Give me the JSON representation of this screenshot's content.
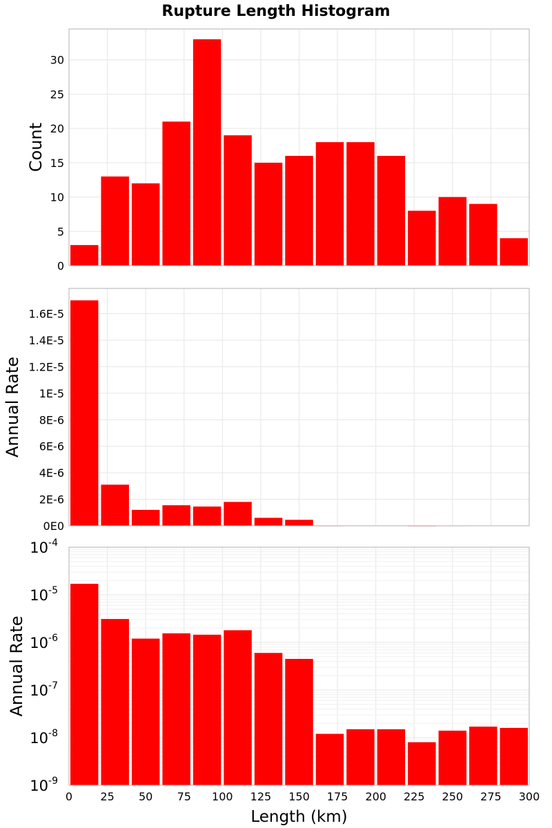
{
  "figure": {
    "title": "Rupture Length Histogram",
    "bar_color": "#ff0000"
  },
  "chart_data": [
    {
      "type": "bar",
      "bin_edges": [
        0,
        20,
        40,
        60,
        80,
        100,
        120,
        140,
        160,
        180,
        200,
        220,
        240,
        260,
        280,
        300
      ],
      "values": [
        3,
        13,
        12,
        21,
        33,
        19,
        15,
        16,
        18,
        18,
        16,
        8,
        10,
        9,
        4
      ],
      "ylabel": "Count",
      "ylim": [
        0,
        34.5
      ],
      "yticks": [
        0,
        5,
        10,
        15,
        20,
        25,
        30
      ],
      "ytick_labels": [
        "0",
        "5",
        "10",
        "15",
        "20",
        "25",
        "30"
      ],
      "yscale": "linear",
      "xlim": [
        0,
        300
      ],
      "grid": true
    },
    {
      "type": "bar",
      "bin_edges": [
        0,
        20,
        40,
        60,
        80,
        100,
        120,
        140,
        160,
        180,
        200,
        220,
        240,
        260,
        280,
        300
      ],
      "values": [
        1.7e-05,
        3.1e-06,
        1.2e-06,
        1.55e-06,
        1.45e-06,
        1.8e-06,
        6e-07,
        4.5e-07,
        1.2e-08,
        1.5e-08,
        1.5e-08,
        8e-09,
        1.4e-08,
        1.7e-08,
        1.6e-08
      ],
      "ylabel": "Annual Rate",
      "ylim": [
        0,
        1.79e-05
      ],
      "yticks": [
        0,
        2e-06,
        4e-06,
        6e-06,
        8e-06,
        1e-05,
        1.2e-05,
        1.4e-05,
        1.6e-05
      ],
      "ytick_labels": [
        "0E0",
        "2E-6",
        "4E-6",
        "6E-6",
        "8E-6",
        "1E-5",
        "1.2E-5",
        "1.4E-5",
        "1.6E-5"
      ],
      "yscale": "linear",
      "xlim": [
        0,
        300
      ],
      "grid": true
    },
    {
      "type": "bar",
      "bin_edges": [
        0,
        20,
        40,
        60,
        80,
        100,
        120,
        140,
        160,
        180,
        200,
        220,
        240,
        260,
        280,
        300
      ],
      "values": [
        1.7e-05,
        3.1e-06,
        1.2e-06,
        1.55e-06,
        1.45e-06,
        1.8e-06,
        6e-07,
        4.5e-07,
        1.2e-08,
        1.5e-08,
        1.5e-08,
        8e-09,
        1.4e-08,
        1.7e-08,
        1.6e-08
      ],
      "ylabel": "Annual Rate",
      "ylim": [
        1e-09,
        0.0001
      ],
      "ytick_exponents": [
        -9,
        -8,
        -7,
        -6,
        -5,
        -4
      ],
      "ytick_base": "10",
      "yscale": "log",
      "xlim": [
        0,
        300
      ],
      "xticks": [
        0,
        25,
        50,
        75,
        100,
        125,
        150,
        175,
        200,
        225,
        250,
        275,
        300
      ],
      "xtick_labels": [
        "0",
        "25",
        "50",
        "75",
        "100",
        "125",
        "150",
        "175",
        "200",
        "225",
        "250",
        "275",
        "300"
      ],
      "xlabel": "Length (km)",
      "grid": true
    }
  ]
}
